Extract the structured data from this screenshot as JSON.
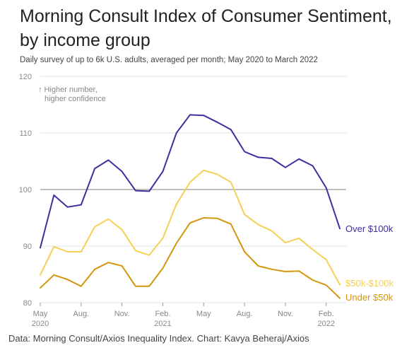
{
  "title": "Morning Consult Index of Consumer Sentiment, by income group",
  "subtitle": "Daily survey of up to 6k U.S. adults, averaged per month; May 2020 to March 2022",
  "source": "Data: Morning Consult/Axios Inequality Index. Chart: Kavya Beheraj/Axios",
  "note": [
    "↑ Higher number,",
    "higher confidence"
  ],
  "colors": {
    "over_100k": "#3d2fa0",
    "between_50k_100k": "#f6cf55",
    "under_50k": "#d4960c",
    "grid": "#e3e3e3",
    "baseline": "#999999"
  },
  "chart_data": {
    "type": "line",
    "title": "Morning Consult Index of Consumer Sentiment, by income group",
    "subtitle": "Daily survey of up to 6k U.S. adults, averaged per month; May 2020 to March 2022",
    "x": [
      "2020-05",
      "2020-06",
      "2020-07",
      "2020-08",
      "2020-09",
      "2020-10",
      "2020-11",
      "2020-12",
      "2021-01",
      "2021-02",
      "2021-03",
      "2021-04",
      "2021-05",
      "2021-06",
      "2021-07",
      "2021-08",
      "2021-09",
      "2021-10",
      "2021-11",
      "2021-12",
      "2022-01",
      "2022-02",
      "2022-03"
    ],
    "x_ticks": [
      {
        "label": "May",
        "year": "2020",
        "index": 0
      },
      {
        "label": "Aug.",
        "year": "",
        "index": 3
      },
      {
        "label": "Nov.",
        "year": "",
        "index": 6
      },
      {
        "label": "Feb.",
        "year": "2021",
        "index": 9
      },
      {
        "label": "May",
        "year": "",
        "index": 12
      },
      {
        "label": "Aug.",
        "year": "",
        "index": 15
      },
      {
        "label": "Nov.",
        "year": "",
        "index": 18
      },
      {
        "label": "Feb.",
        "year": "2022",
        "index": 21
      }
    ],
    "ylim": [
      80,
      120
    ],
    "y_ticks": [
      80,
      90,
      100,
      110,
      120
    ],
    "baseline": 100,
    "grid": true,
    "series": [
      {
        "name": "Over $100k",
        "color_key": "over_100k",
        "values": [
          89.7,
          99.0,
          96.9,
          97.3,
          103.7,
          105.2,
          103.2,
          99.8,
          99.7,
          103.2,
          110.0,
          113.2,
          113.1,
          111.9,
          110.6,
          106.7,
          105.7,
          105.5,
          103.9,
          105.4,
          104.2,
          100.3,
          93.1
        ]
      },
      {
        "name": "$50k-$100k",
        "color_key": "between_50k_100k",
        "values": [
          84.9,
          89.9,
          89.0,
          89.0,
          93.4,
          94.8,
          92.9,
          89.2,
          88.4,
          91.4,
          97.4,
          101.3,
          103.4,
          102.7,
          101.3,
          95.6,
          93.8,
          92.7,
          90.6,
          91.4,
          89.4,
          87.6,
          83.2
        ]
      },
      {
        "name": "Under $50k",
        "color_key": "under_50k",
        "values": [
          82.6,
          84.9,
          84.1,
          82.9,
          85.9,
          87.1,
          86.5,
          82.9,
          82.9,
          86.1,
          90.5,
          94.1,
          95.0,
          94.9,
          93.9,
          89.0,
          86.5,
          85.9,
          85.5,
          85.6,
          84.0,
          83.1,
          80.8
        ]
      }
    ]
  }
}
